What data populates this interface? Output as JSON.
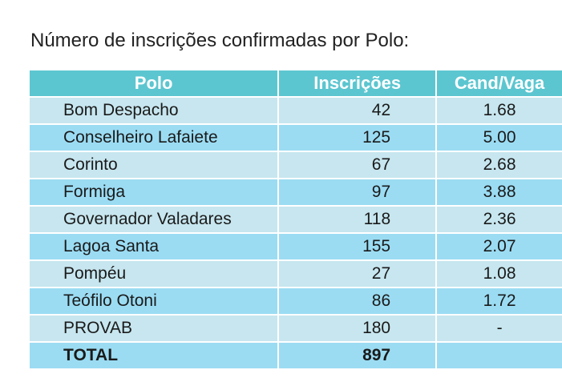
{
  "title": "Número de inscrições confirmadas por Polo:",
  "headers": {
    "polo": "Polo",
    "inscricoes": "Inscrições",
    "cand_vaga": "Cand/Vaga"
  },
  "rows": [
    {
      "polo": "Bom Despacho",
      "inscricoes": "42",
      "cand_vaga": "1.68"
    },
    {
      "polo": "Conselheiro Lafaiete",
      "inscricoes": "125",
      "cand_vaga": "5.00"
    },
    {
      "polo": "Corinto",
      "inscricoes": "67",
      "cand_vaga": "2.68"
    },
    {
      "polo": "Formiga",
      "inscricoes": "97",
      "cand_vaga": "3.88"
    },
    {
      "polo": "Governador Valadares",
      "inscricoes": "118",
      "cand_vaga": "2.36"
    },
    {
      "polo": "Lagoa Santa",
      "inscricoes": "155",
      "cand_vaga": "2.07"
    },
    {
      "polo": "Pompéu",
      "inscricoes": "27",
      "cand_vaga": "1.08"
    },
    {
      "polo": "Teófilo Otoni",
      "inscricoes": "86",
      "cand_vaga": "1.72"
    },
    {
      "polo": "PROVAB",
      "inscricoes": "180",
      "cand_vaga": "-"
    },
    {
      "polo": "TOTAL",
      "inscricoes": "897",
      "cand_vaga": ""
    }
  ],
  "colors": {
    "header": "#5cc6d0",
    "row_light": "#c7e6ef",
    "row_dark": "#9bdcf3"
  }
}
